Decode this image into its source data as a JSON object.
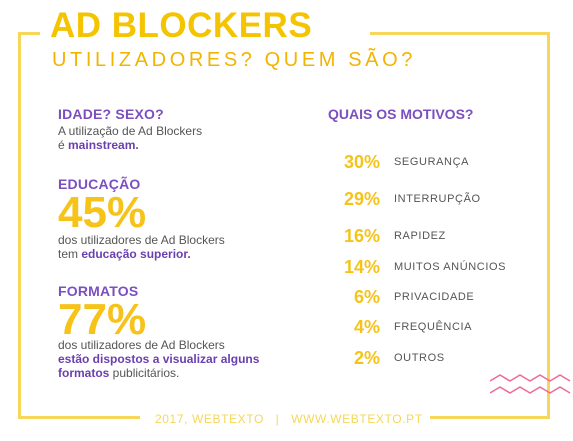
{
  "header": {
    "title": "AD BLOCKERS",
    "subtitle": "UTILIZADORES? QUEM SÃO?"
  },
  "idade": {
    "heading": "IDADE? SEXO?",
    "line1": "A utilização de Ad Blockers",
    "line2_prefix": "é ",
    "line2_highlight": "mainstream."
  },
  "educacao": {
    "heading": "EDUCAÇÃO",
    "percent": "45%",
    "line1": "dos utilizadores de Ad Blockers",
    "line2_prefix": "tem ",
    "line2_highlight": "educação superior."
  },
  "formatos": {
    "heading": "FORMATOS",
    "percent": "77%",
    "line1": "dos utilizadores de Ad Blockers",
    "line2_highlight": "estão dispostos a visualizar alguns",
    "line3_highlight": "formatos",
    "line3_suffix": " publicitários."
  },
  "motivos": {
    "heading": "QUAIS OS MOTIVOS?",
    "items": [
      {
        "percent": "30%",
        "label": "SEGURANÇA"
      },
      {
        "percent": "29%",
        "label": "INTERRUPÇÃO"
      },
      {
        "percent": "16%",
        "label": "RAPIDEZ"
      },
      {
        "percent": "14%",
        "label": "MUITOS ANÚNCIOS"
      },
      {
        "percent": "6%",
        "label": "PRIVACIDADE"
      },
      {
        "percent": "4%",
        "label": "FREQUÊNCIA"
      },
      {
        "percent": "2%",
        "label": "OUTROS"
      }
    ]
  },
  "footer": {
    "text": "2017, WEBTEXTO   |   WWW.WEBTEXTO.PT"
  },
  "colors": {
    "yellow": "#f6c31a",
    "purple": "#7b4fbf",
    "pink": "#f06a9a",
    "text": "#555555"
  },
  "icons": [
    "zigzag-decoration"
  ]
}
